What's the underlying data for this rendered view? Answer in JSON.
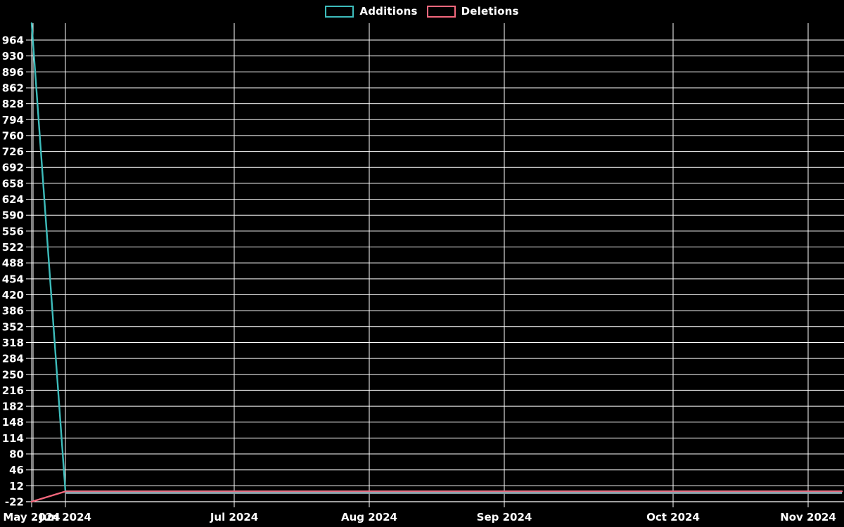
{
  "chart_data": {
    "type": "line",
    "title": "",
    "legend_position": "top-center",
    "grid": true,
    "background_color": "#000000",
    "grid_color": "#ffffff",
    "text_color": "#ffffff",
    "overlap_line_color": "#8FA4AE",
    "legend": [
      {
        "name": "Additions",
        "color": "#3DBCBB"
      },
      {
        "name": "Deletions",
        "color": "#F4687D"
      }
    ],
    "x_axis": {
      "unit": "week",
      "num_points": 25,
      "ticks": [
        {
          "week_index": 0,
          "label": "May 2024"
        },
        {
          "week_index": 1,
          "label": "Jun 2024"
        },
        {
          "week_index": 6,
          "label": "Jul 2024"
        },
        {
          "week_index": 10,
          "label": "Aug 2024"
        },
        {
          "week_index": 14,
          "label": "Sep 2024"
        },
        {
          "week_index": 19,
          "label": "Oct 2024"
        },
        {
          "week_index": 23,
          "label": "Nov 2024"
        }
      ]
    },
    "y_axis": {
      "min": -22,
      "max": 1000,
      "tick_step": 34,
      "tick_labels": [
        964,
        930,
        896,
        862,
        828,
        794,
        760,
        726,
        692,
        658,
        624,
        590,
        556,
        522,
        488,
        454,
        420,
        386,
        352,
        318,
        284,
        250,
        216,
        182,
        148,
        114,
        80,
        46,
        12,
        -22
      ]
    },
    "series": [
      {
        "name": "Additions",
        "color": "#3DBCBB",
        "values": [
          1000,
          0,
          0,
          0,
          0,
          0,
          0,
          0,
          0,
          0,
          0,
          0,
          0,
          0,
          0,
          0,
          0,
          0,
          0,
          0,
          0,
          0,
          0,
          0,
          0
        ]
      },
      {
        "name": "Deletions",
        "color": "#F4687D",
        "values": [
          -22,
          0,
          0,
          0,
          0,
          0,
          0,
          0,
          0,
          0,
          0,
          0,
          0,
          0,
          0,
          0,
          0,
          0,
          0,
          0,
          0,
          0,
          0,
          0,
          0
        ]
      }
    ]
  }
}
